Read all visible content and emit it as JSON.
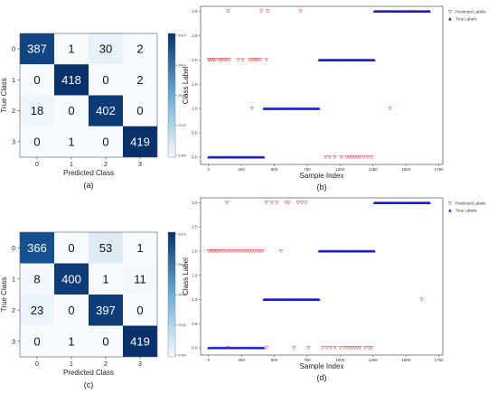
{
  "chart_data": [
    {
      "type": "heatmap",
      "caption": "(a)",
      "xlabel": "Predicted Class",
      "ylabel": "True Class",
      "x_ticks": [
        "0",
        "1",
        "2",
        "3"
      ],
      "y_ticks": [
        "0",
        "1",
        "2",
        "3"
      ],
      "matrix": [
        [
          387,
          1,
          30,
          2
        ],
        [
          0,
          418,
          0,
          2
        ],
        [
          18,
          0,
          402,
          0
        ],
        [
          0,
          1,
          0,
          419
        ]
      ],
      "colorbar_ticks": [
        "419.0",
        "334.4",
        "29.00",
        "19.00",
        "0.000"
      ],
      "vmax": 419,
      "colormap": [
        "#f7fbff",
        "#08306b"
      ]
    },
    {
      "type": "scatter",
      "caption": "(b)",
      "xlabel": "Sample Index",
      "ylabel": "Class Label",
      "xlim": [
        -60,
        1780
      ],
      "ylim": [
        -0.15,
        3.1
      ],
      "x_ticks": [
        0,
        250,
        500,
        750,
        1000,
        1250,
        1500,
        1750
      ],
      "y_ticks": [
        "0.0",
        "0.5",
        "1.0",
        "1.5",
        "2.0",
        "2.5",
        "3.0"
      ],
      "legend": [
        "Predicted Labels",
        "True Labels"
      ],
      "legend_position": "outside-top-right",
      "true_segments": [
        {
          "class": 0,
          "x_start": 0,
          "x_end": 420
        },
        {
          "class": 1,
          "x_start": 420,
          "x_end": 840
        },
        {
          "class": 2,
          "x_start": 840,
          "x_end": 1260
        },
        {
          "class": 3,
          "x_start": 1260,
          "x_end": 1680
        }
      ],
      "predicted_points": [
        {
          "x": 150,
          "y": 3
        },
        {
          "x": 400,
          "y": 3
        },
        {
          "x": 450,
          "y": 3
        },
        {
          "x": 700,
          "y": 3
        },
        {
          "x": 0,
          "y": 2
        },
        {
          "x": 10,
          "y": 2
        },
        {
          "x": 25,
          "y": 2
        },
        {
          "x": 40,
          "y": 2
        },
        {
          "x": 55,
          "y": 2
        },
        {
          "x": 80,
          "y": 2
        },
        {
          "x": 95,
          "y": 2
        },
        {
          "x": 110,
          "y": 2
        },
        {
          "x": 125,
          "y": 2
        },
        {
          "x": 140,
          "y": 2
        },
        {
          "x": 160,
          "y": 2
        },
        {
          "x": 225,
          "y": 2
        },
        {
          "x": 260,
          "y": 2
        },
        {
          "x": 310,
          "y": 2
        },
        {
          "x": 330,
          "y": 2
        },
        {
          "x": 345,
          "y": 2
        },
        {
          "x": 360,
          "y": 2
        },
        {
          "x": 375,
          "y": 2
        },
        {
          "x": 395,
          "y": 2
        },
        {
          "x": 440,
          "y": 2
        },
        {
          "x": 330,
          "y": 1
        },
        {
          "x": 1380,
          "y": 1
        },
        {
          "x": 890,
          "y": 0
        },
        {
          "x": 920,
          "y": 0
        },
        {
          "x": 960,
          "y": 0
        },
        {
          "x": 1010,
          "y": 0
        },
        {
          "x": 1050,
          "y": 0
        },
        {
          "x": 1070,
          "y": 0
        },
        {
          "x": 1090,
          "y": 0
        },
        {
          "x": 1110,
          "y": 0
        },
        {
          "x": 1130,
          "y": 0
        },
        {
          "x": 1150,
          "y": 0
        },
        {
          "x": 1180,
          "y": 0
        },
        {
          "x": 1210,
          "y": 0
        },
        {
          "x": 1240,
          "y": 0
        }
      ]
    },
    {
      "type": "heatmap",
      "caption": "(c)",
      "xlabel": "Predicted Class",
      "ylabel": "True Class",
      "x_ticks": [
        "0",
        "1",
        "2",
        "3"
      ],
      "y_ticks": [
        "0",
        "1",
        "2",
        "3"
      ],
      "matrix": [
        [
          366,
          0,
          53,
          1
        ],
        [
          8,
          400,
          1,
          11
        ],
        [
          23,
          0,
          397,
          0
        ],
        [
          0,
          1,
          0,
          419
        ]
      ],
      "colorbar_ticks": [
        "419.0",
        "334.4",
        "29.00",
        "19.00",
        "0.000"
      ],
      "vmax": 419,
      "colormap": [
        "#f7fbff",
        "#08306b"
      ]
    },
    {
      "type": "scatter",
      "caption": "(d)",
      "xlabel": "Sample Index",
      "ylabel": "Class Label",
      "xlim": [
        -60,
        1780
      ],
      "ylim": [
        -0.15,
        3.1
      ],
      "x_ticks": [
        0,
        250,
        500,
        750,
        1000,
        1250,
        1500,
        1750
      ],
      "y_ticks": [
        "0.0",
        "0.5",
        "1.0",
        "1.5",
        "2.0",
        "2.5",
        "3.0"
      ],
      "legend": [
        "Predicted Labels",
        "True Labels"
      ],
      "legend_position": "outside-top-right",
      "true_segments": [
        {
          "class": 0,
          "x_start": 0,
          "x_end": 420
        },
        {
          "class": 1,
          "x_start": 420,
          "x_end": 840
        },
        {
          "class": 2,
          "x_start": 840,
          "x_end": 1260
        },
        {
          "class": 3,
          "x_start": 1260,
          "x_end": 1680
        }
      ],
      "predicted_points": [
        {
          "x": 140,
          "y": 3
        },
        {
          "x": 440,
          "y": 3
        },
        {
          "x": 480,
          "y": 3
        },
        {
          "x": 520,
          "y": 3
        },
        {
          "x": 590,
          "y": 3
        },
        {
          "x": 610,
          "y": 3
        },
        {
          "x": 680,
          "y": 3
        },
        {
          "x": 710,
          "y": 3
        },
        {
          "x": 740,
          "y": 3
        },
        {
          "x": 0,
          "y": 2
        },
        {
          "x": 15,
          "y": 2
        },
        {
          "x": 30,
          "y": 2
        },
        {
          "x": 45,
          "y": 2
        },
        {
          "x": 60,
          "y": 2
        },
        {
          "x": 75,
          "y": 2
        },
        {
          "x": 90,
          "y": 2
        },
        {
          "x": 110,
          "y": 2
        },
        {
          "x": 130,
          "y": 2
        },
        {
          "x": 150,
          "y": 2
        },
        {
          "x": 170,
          "y": 2
        },
        {
          "x": 190,
          "y": 2
        },
        {
          "x": 210,
          "y": 2
        },
        {
          "x": 230,
          "y": 2
        },
        {
          "x": 250,
          "y": 2
        },
        {
          "x": 270,
          "y": 2
        },
        {
          "x": 290,
          "y": 2
        },
        {
          "x": 310,
          "y": 2
        },
        {
          "x": 330,
          "y": 2
        },
        {
          "x": 350,
          "y": 2
        },
        {
          "x": 370,
          "y": 2
        },
        {
          "x": 390,
          "y": 2
        },
        {
          "x": 410,
          "y": 2
        },
        {
          "x": 550,
          "y": 2
        },
        {
          "x": 1620,
          "y": 1
        },
        {
          "x": 150,
          "y": 0
        },
        {
          "x": 440,
          "y": 0
        },
        {
          "x": 650,
          "y": 0
        },
        {
          "x": 760,
          "y": 0
        },
        {
          "x": 870,
          "y": 0
        },
        {
          "x": 900,
          "y": 0
        },
        {
          "x": 930,
          "y": 0
        },
        {
          "x": 960,
          "y": 0
        },
        {
          "x": 1000,
          "y": 0
        },
        {
          "x": 1030,
          "y": 0
        },
        {
          "x": 1050,
          "y": 0
        },
        {
          "x": 1070,
          "y": 0
        },
        {
          "x": 1090,
          "y": 0
        },
        {
          "x": 1110,
          "y": 0
        },
        {
          "x": 1130,
          "y": 0
        },
        {
          "x": 1150,
          "y": 0
        },
        {
          "x": 1190,
          "y": 0
        },
        {
          "x": 1220,
          "y": 0
        },
        {
          "x": 1240,
          "y": 0
        }
      ]
    }
  ],
  "colors": {
    "predicted": "#e03030",
    "true": "#1a1acc"
  }
}
